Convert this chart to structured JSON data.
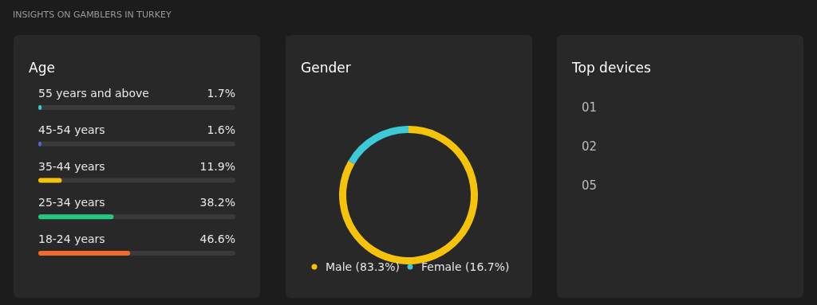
{
  "chart_data": [
    {
      "type": "bar",
      "orientation": "horizontal",
      "title": "Age",
      "annotations": [
        "INSIGHTS ON GAMBLERS IN TURKEY"
      ],
      "categories": [
        "55 years and above",
        "45-54 years",
        "35-44 years",
        "25-34 years",
        "18-24 years"
      ],
      "values": [
        1.7,
        1.6,
        11.9,
        38.2,
        46.6
      ],
      "value_labels": [
        "1.7%",
        "1.6%",
        "11.9%",
        "38.2%",
        "46.6%"
      ],
      "colors": [
        "#3ec9d6",
        "#5c5fd6",
        "#f5c20c",
        "#22c97e",
        "#f26b2a"
      ],
      "xlim": [
        0,
        100
      ],
      "tick_labels": "y"
    },
    {
      "type": "donut",
      "title": "Gender",
      "categories": [
        "Male (83.3%)",
        "Female (16.7%)"
      ],
      "values": [
        83.3,
        16.7
      ],
      "colors": [
        "#f5c20c",
        "#3ec9d6"
      ],
      "legend": "bottom"
    },
    {
      "type": "other",
      "title": "Top devices",
      "annotations": [
        "01",
        "02",
        "05"
      ]
    }
  ]
}
